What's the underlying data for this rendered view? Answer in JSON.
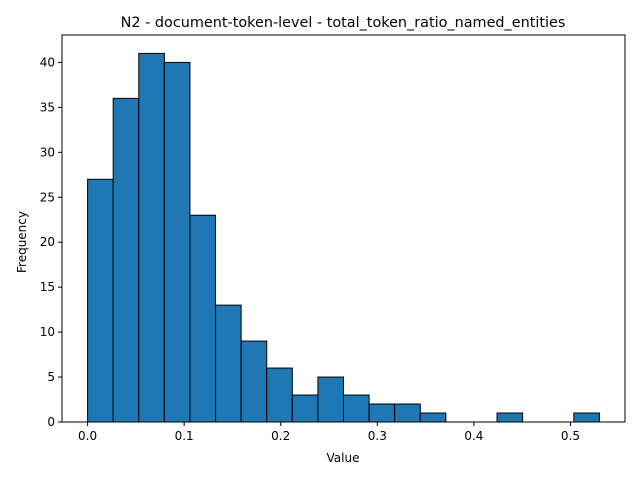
{
  "chart_data": {
    "type": "bar",
    "subtype": "histogram",
    "title": "N2 - document-token-level - total_token_ratio_named_entities",
    "xlabel": "Value",
    "ylabel": "Frequency",
    "xlim": [
      -0.0265,
      0.5565
    ],
    "ylim": [
      0,
      43.05
    ],
    "bin_edges": [
      0.0,
      0.0265,
      0.053,
      0.0795,
      0.106,
      0.1325,
      0.159,
      0.1855,
      0.212,
      0.2385,
      0.265,
      0.2915,
      0.318,
      0.3445,
      0.371,
      0.3975,
      0.424,
      0.4505,
      0.477,
      0.5035,
      0.53
    ],
    "values": [
      27,
      36,
      41,
      40,
      23,
      13,
      9,
      6,
      3,
      5,
      3,
      2,
      2,
      1,
      0,
      0,
      1,
      0,
      0,
      1
    ],
    "x_ticks": [
      0.0,
      0.1,
      0.2,
      0.3,
      0.4,
      0.5
    ],
    "x_tick_labels": [
      "0.0",
      "0.1",
      "0.2",
      "0.3",
      "0.4",
      "0.5"
    ],
    "y_ticks": [
      0,
      5,
      10,
      15,
      20,
      25,
      30,
      35,
      40
    ],
    "y_tick_labels": [
      "0",
      "5",
      "10",
      "15",
      "20",
      "25",
      "30",
      "35",
      "40"
    ],
    "bar_color": "#1f77b4",
    "edge_color": "#000000",
    "grid": false,
    "legend": "none"
  }
}
